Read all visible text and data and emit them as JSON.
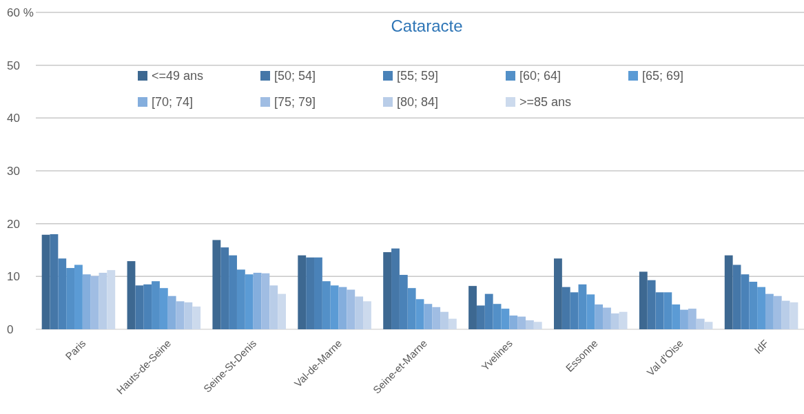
{
  "chart_data": {
    "type": "bar",
    "title": "Cataracte",
    "categories": [
      "Paris",
      "Hauts-de-Seine",
      "Seine-St-Denis",
      "Val-de-Marne",
      "Seine-et-Marne",
      "Yvelines",
      "Essonne",
      "Val d'Oise",
      "IdF"
    ],
    "series": [
      {
        "name": "<=49 ans",
        "color": "#3d6891",
        "values": [
          17.9,
          12.9,
          16.9,
          14.0,
          14.6,
          8.2,
          13.4,
          10.9,
          14.0
        ]
      },
      {
        "name": "[50; 54]",
        "color": "#4577a8",
        "values": [
          18.0,
          8.3,
          15.5,
          13.6,
          15.3,
          4.5,
          8.0,
          9.3,
          12.2
        ]
      },
      {
        "name": "[55; 59]",
        "color": "#4a82b8",
        "values": [
          13.4,
          8.5,
          14.0,
          13.6,
          10.3,
          6.7,
          7.0,
          7.0,
          10.4
        ]
      },
      {
        "name": "[60; 64]",
        "color": "#5390c8",
        "values": [
          11.6,
          9.1,
          11.3,
          9.1,
          7.8,
          4.8,
          8.5,
          7.0,
          9.0
        ]
      },
      {
        "name": "[65; 69]",
        "color": "#5b9bd5",
        "values": [
          12.2,
          7.8,
          10.4,
          8.3,
          5.7,
          3.9,
          6.6,
          4.7,
          8.0
        ]
      },
      {
        "name": "[70; 74]",
        "color": "#84aedd",
        "values": [
          10.4,
          6.3,
          10.7,
          8.0,
          4.8,
          2.6,
          4.7,
          3.7,
          6.7
        ]
      },
      {
        "name": "[75; 79]",
        "color": "#a0bde3",
        "values": [
          10.1,
          5.3,
          10.6,
          7.5,
          4.2,
          2.4,
          4.1,
          3.9,
          6.3
        ]
      },
      {
        "name": "[80; 84]",
        "color": "#b9cde8",
        "values": [
          10.7,
          5.1,
          8.3,
          6.2,
          3.3,
          1.7,
          3.0,
          2.0,
          5.4
        ]
      },
      {
        "name": ">=85 ans",
        "color": "#ccdaed",
        "values": [
          11.2,
          4.3,
          6.7,
          5.3,
          2.0,
          1.4,
          3.3,
          1.4,
          5.1
        ]
      }
    ],
    "ylim": [
      0,
      60
    ],
    "yticks": [
      0,
      10,
      20,
      30,
      40,
      50,
      {
        "value": 60,
        "label": "60 %"
      }
    ],
    "grid": "y",
    "legend": "top"
  }
}
